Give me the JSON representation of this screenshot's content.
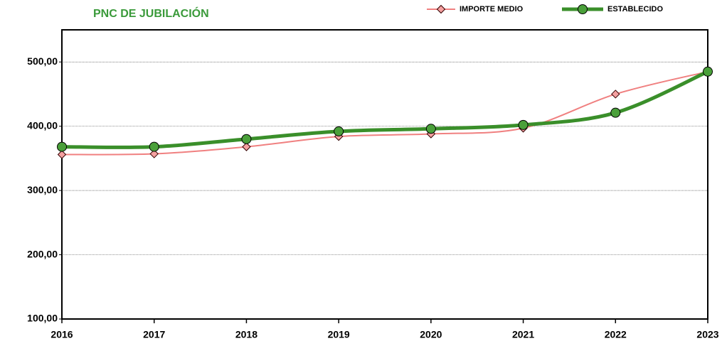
{
  "chart_data": {
    "type": "line",
    "title": "PNC DE JUBILACIÓN",
    "categories": [
      "2016",
      "2017",
      "2018",
      "2019",
      "2020",
      "2021",
      "2022",
      "2023"
    ],
    "series": [
      {
        "name": "IMPORTE MEDIO",
        "color": "#f08080",
        "marker": "diamond",
        "values": [
          356,
          357,
          368,
          384,
          388,
          397,
          450,
          485
        ]
      },
      {
        "name": "ESTABLECIDO",
        "color": "#3a8f2a",
        "marker": "circle",
        "values": [
          368,
          368,
          380,
          392,
          396,
          402,
          421,
          485
        ]
      }
    ],
    "ylim": [
      100,
      550
    ],
    "yticks": [
      {
        "value": 100,
        "label": "100,00"
      },
      {
        "value": 200,
        "label": "200,00"
      },
      {
        "value": 300,
        "label": "300,00"
      },
      {
        "value": 400,
        "label": "400,00"
      },
      {
        "value": 500,
        "label": "500,00"
      }
    ],
    "grid": true,
    "legend": "top-right"
  }
}
